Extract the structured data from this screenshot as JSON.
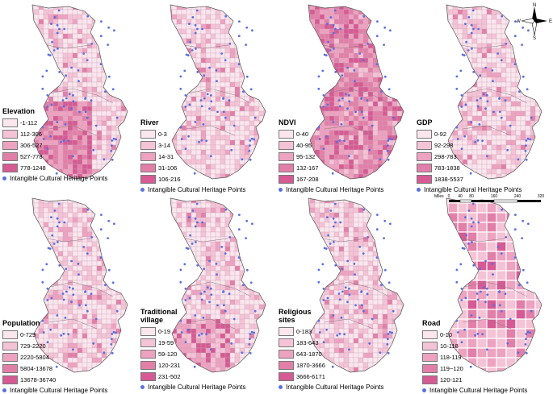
{
  "layers": [
    {
      "id": "elevation",
      "title": "Elevation",
      "classes": [
        "-1-112",
        "112-306",
        "306-527",
        "527-778",
        "778-1248"
      ],
      "colors": [
        "#fbe6ee",
        "#f5c3d6",
        "#eda2c0",
        "#e27fa8",
        "#d65a93"
      ]
    },
    {
      "id": "river",
      "title": "River",
      "classes": [
        "0-3",
        "3-14",
        "14-31",
        "31-106",
        "106-216"
      ],
      "colors": [
        "#fbe6ee",
        "#f5c3d6",
        "#eda2c0",
        "#e27fa8",
        "#d65a93"
      ]
    },
    {
      "id": "ndvi",
      "title": "NDVI",
      "classes": [
        "0-40",
        "40-95",
        "95-132",
        "132-167",
        "167-208"
      ],
      "colors": [
        "#fbe6ee",
        "#f5c3d6",
        "#eda2c0",
        "#e27fa8",
        "#d65a93"
      ]
    },
    {
      "id": "gdp",
      "title": "GDP",
      "classes": [
        "0-92",
        "92-298",
        "298-783",
        "783-1838",
        "1838-5537"
      ],
      "colors": [
        "#fbe6ee",
        "#f5c3d6",
        "#eda2c0",
        "#e27fa8",
        "#d65a93"
      ]
    },
    {
      "id": "population",
      "title": "Population",
      "classes": [
        "0-729",
        "729-2220",
        "2220-5804",
        "5804-13678",
        "13678-36740"
      ],
      "colors": [
        "#fbe6ee",
        "#f5c3d6",
        "#eda2c0",
        "#e27fa8",
        "#d65a93"
      ]
    },
    {
      "id": "traditional-village",
      "title": "Traditional village",
      "classes": [
        "0-19",
        "19-59",
        "59-120",
        "120-231",
        "231-502"
      ],
      "colors": [
        "#fbe6ee",
        "#f5c3d6",
        "#eda2c0",
        "#e27fa8",
        "#d65a93"
      ]
    },
    {
      "id": "religious-sites",
      "title": "Religious sites",
      "classes": [
        "0-183",
        "183-643",
        "643-1870",
        "1870-3666",
        "3666-6171"
      ],
      "colors": [
        "#fbe6ee",
        "#f5c3d6",
        "#eda2c0",
        "#e27fa8",
        "#d65a93"
      ]
    },
    {
      "id": "road",
      "title": "Road",
      "classes": [
        "0-10",
        "10-118",
        "118-119",
        "119~120",
        "120-121"
      ],
      "colors": [
        "#fbe6ee",
        "#f5c3d6",
        "#eda2c0",
        "#e27fa8",
        "#d65a93"
      ]
    }
  ],
  "points_label": "Intangible Cultural Heritage  Points",
  "point_color": "#5a6fe0",
  "north_arrow": {
    "letters": [
      "N",
      "E",
      "S",
      "W"
    ]
  },
  "scale_bar": {
    "unit": "Miles",
    "ticks": [
      "0",
      "40",
      "80",
      "160",
      "240",
      "320"
    ]
  }
}
